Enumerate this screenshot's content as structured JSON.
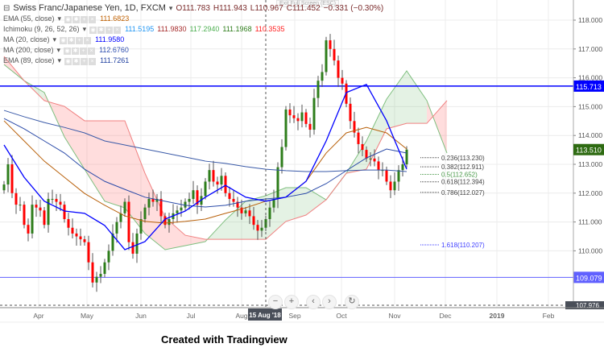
{
  "header": {
    "symbol": "Swiss Franc/Japanese Yen, 1D, FXCM",
    "open": "O111.783",
    "high": "H111.943",
    "low": "L110.967",
    "close": "C111.452",
    "change": "−0.331 (−0.30%)",
    "exit_fullscreen": "Exit Full Screen (ESC)"
  },
  "indicators": [
    {
      "label": "EMA (55, close)",
      "values": [
        "111.6823"
      ],
      "colors": [
        "#c06000"
      ]
    },
    {
      "label": "Ichimoku (9, 26, 52, 26)",
      "values": [
        "111.5195",
        "111.9830",
        "117.2940",
        "111.1968",
        "110.3535"
      ],
      "colors": [
        "#2196f3",
        "#a52a2a",
        "#4caf50",
        "#2e7d1b",
        "#ff2020"
      ]
    },
    {
      "label": "MA (20, close)",
      "values": [
        "111.9580"
      ],
      "colors": [
        "#0000ff"
      ]
    },
    {
      "label": "MA (200, close)",
      "values": [
        "112.6760"
      ],
      "colors": [
        "#3050b0"
      ]
    },
    {
      "label": "EMA (89, close)",
      "values": [
        "111.7261"
      ],
      "colors": [
        "#2040a0"
      ]
    }
  ],
  "nav": {
    "zoom_out": "−",
    "zoom_in": "+",
    "back": "‹",
    "forward": "›",
    "reset": "↻"
  },
  "credit": "Created with Tradingview",
  "colors": {
    "up": "#2e7d1b",
    "down": "#ff0000",
    "ma20": "#0000ff",
    "ema55": "#b8600a",
    "ema89": "#2a4aa8",
    "ma200": "#3a5aa8",
    "spanA": "#7fbf7f",
    "spanB": "#f08080"
  },
  "chart_data": {
    "type": "candlestick",
    "symbol": "CHF/JPY",
    "y_range": [
      107.976,
      118.6
    ],
    "y_ticks": [
      "118.000",
      "117.000",
      "116.000",
      "115.000",
      "114.000",
      "113.000",
      "112.000",
      "111.000",
      "110.000"
    ],
    "x_ticks": [
      "Apr",
      "May",
      "Jun",
      "Jul",
      "Aug",
      "Sep",
      "Oct",
      "Nov",
      "Dec",
      "2019",
      "Feb"
    ],
    "cursor_date": "15 Aug '18",
    "cursor_price": "107.976",
    "last_price": "113.510",
    "closes": [
      112.3,
      113.0,
      112.0,
      111.6,
      111.6,
      110.9,
      110.6,
      111.6,
      111.5,
      111.4,
      110.9,
      111.8,
      111.8,
      111.7,
      111.6,
      111.1,
      110.8,
      110.6,
      110.5,
      110.4,
      110.3,
      109.6,
      108.9,
      109.1,
      109.2,
      109.6,
      110.0,
      110.6,
      111.0,
      111.3,
      111.7,
      110.3,
      109.9,
      110.6,
      111.1,
      111.5,
      111.8,
      111.7,
      111.8,
      111.2,
      110.9,
      111.1,
      111.3,
      111.4,
      111.5,
      111.7,
      111.8,
      112.1,
      111.6,
      111.9,
      112.4,
      112.8,
      112.4,
      112.3,
      112.6,
      112.0,
      111.8,
      111.7,
      111.5,
      111.3,
      111.4,
      111.2,
      110.9,
      110.7,
      110.8,
      111.1,
      111.5,
      111.8,
      112.9,
      113.6,
      114.9,
      114.7,
      114.6,
      114.5,
      114.8,
      114.4,
      114.2,
      115.3,
      115.9,
      116.2,
      117.3,
      117.0,
      116.6,
      116.0,
      115.8,
      115.1,
      114.5,
      114.1,
      113.7,
      113.5,
      113.2,
      113.2,
      113.1,
      112.8,
      112.8,
      112.4,
      112.1,
      112.4,
      112.8,
      113.0,
      113.51
    ],
    "lines_every_5_bars": {
      "ma200": [
        114.87,
        114.65,
        114.45,
        114.28,
        114.09,
        113.81,
        113.67,
        113.53,
        113.39,
        113.25,
        113.11,
        113.03,
        112.92,
        112.83,
        112.78,
        112.75,
        112.75,
        112.78,
        112.8,
        112.8,
        112.75
      ],
      "ema89": [
        114.59,
        114.23,
        113.81,
        113.39,
        112.83,
        112.41,
        112.13,
        111.86,
        111.72,
        111.58,
        111.52,
        111.58,
        111.72,
        111.8,
        111.86,
        111.99,
        112.33,
        112.78,
        113.22,
        113.53,
        113.39
      ],
      "ema55": [
        114.51,
        113.81,
        113.11,
        112.55,
        111.99,
        111.58,
        111.21,
        111.02,
        110.96,
        111.02,
        111.1,
        111.3,
        111.49,
        111.72,
        111.86,
        112.41,
        113.39,
        114.09,
        114.28,
        114.09,
        113.53
      ],
      "ma20": [
        113.67,
        112.55,
        111.72,
        111.38,
        111.3,
        110.88,
        110.04,
        110.32,
        111.1,
        111.38,
        111.86,
        112.27,
        111.86,
        111.72,
        111.86,
        112.41,
        113.81,
        115.49,
        115.77,
        114.51,
        112.83
      ],
      "spanA": [
        116.46,
        115.9,
        115.49,
        113.95,
        112.83,
        111.72,
        111.49,
        110.6,
        110.04,
        110.18,
        110.32,
        111.07,
        111.72,
        111.91,
        112.19,
        112.19,
        111.77,
        112.69,
        113.81,
        115.26,
        116.24,
        115.21,
        113.39
      ],
      "spanB": [
        116.74,
        115.9,
        115.21,
        115.01,
        114.51,
        114.51,
        114.51,
        112.69,
        111.16,
        110.54,
        110.4,
        110.4,
        110.4,
        110.4,
        111.02,
        111.24,
        111.77,
        112.69,
        112.83,
        114.23,
        114.42,
        114.42,
        115.21
      ]
    },
    "horizontal_levels": [
      {
        "label": "115.713",
        "price": 115.713,
        "color": "#0000ff"
      },
      {
        "label": "109.079",
        "price": 109.079,
        "color": "#6060ff"
      }
    ],
    "fibonacci": [
      {
        "label": "0.236(113.230)",
        "price": 113.23,
        "color": "#444"
      },
      {
        "label": "0.382(112.911)",
        "price": 112.911,
        "color": "#444"
      },
      {
        "label": "0.5(112.652)",
        "price": 112.652,
        "color": "#4a9a4a"
      },
      {
        "label": "0.618(112.394)",
        "price": 112.394,
        "color": "#444"
      },
      {
        "label": "0.786(112.027)",
        "price": 112.027,
        "color": "#444"
      },
      {
        "label": "1.618(110.207)",
        "price": 110.207,
        "color": "#4040ff"
      }
    ]
  }
}
